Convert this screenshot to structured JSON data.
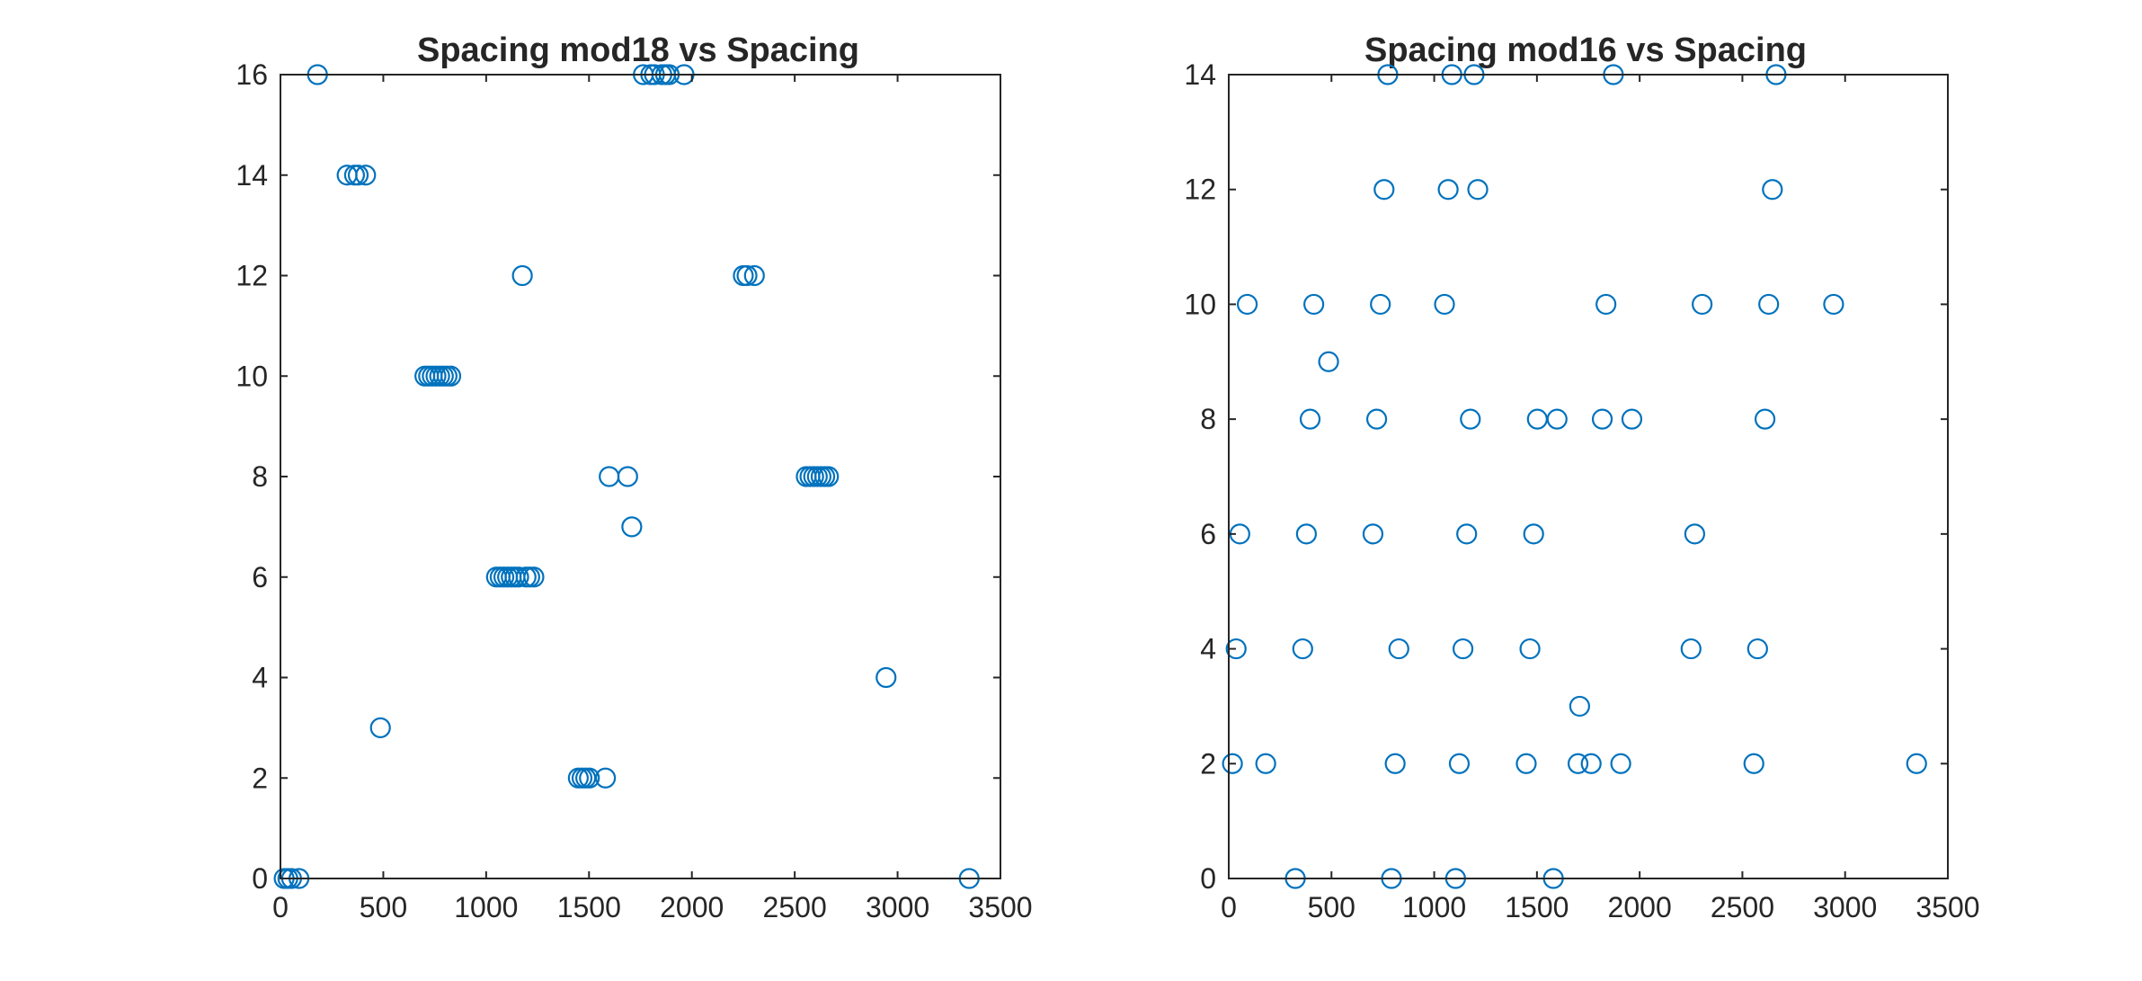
{
  "chart_data": [
    {
      "type": "scatter",
      "title": "Spacing mod18 vs Spacing",
      "xlabel": "",
      "ylabel": "",
      "xlim": [
        0,
        3500
      ],
      "ylim": [
        0,
        16
      ],
      "xticks": [
        "0",
        "500",
        "1000",
        "1500",
        "2000",
        "2500",
        "3000",
        "3500"
      ],
      "yticks": [
        "0",
        "2",
        "4",
        "6",
        "8",
        "10",
        "12",
        "14",
        "16"
      ],
      "grid": false,
      "marker": "circle",
      "color": "#0072BD",
      "series": [
        {
          "x": [
            18,
            36,
            54,
            90,
            180,
            324,
            360,
            378,
            414,
            486,
            702,
            720,
            738,
            756,
            774,
            792,
            810,
            828,
            1050,
            1068,
            1086,
            1104,
            1122,
            1140,
            1158,
            1176,
            1194,
            1212,
            1232,
            1448,
            1466,
            1484,
            1502,
            1580,
            1598,
            1688,
            1708,
            1764,
            1800,
            1818,
            1854,
            1872,
            1890,
            1962,
            2250,
            2268,
            2304,
            2556,
            2574,
            2592,
            2610,
            2628,
            2646,
            2664,
            2944,
            3348
          ],
          "y": [
            0,
            0,
            0,
            0,
            16,
            14,
            14,
            14,
            14,
            3,
            10,
            10,
            10,
            10,
            10,
            10,
            10,
            10,
            6,
            6,
            6,
            6,
            6,
            6,
            6,
            12,
            6,
            6,
            6,
            2,
            2,
            2,
            2,
            2,
            8,
            8,
            7,
            16,
            16,
            16,
            16,
            16,
            16,
            16,
            12,
            12,
            12,
            8,
            8,
            8,
            8,
            8,
            8,
            8,
            4,
            0
          ]
        }
      ]
    },
    {
      "type": "scatter",
      "title": "Spacing mod16 vs Spacing",
      "xlabel": "",
      "ylabel": "",
      "xlim": [
        0,
        3500
      ],
      "ylim": [
        0,
        14
      ],
      "xticks": [
        "0",
        "500",
        "1000",
        "1500",
        "2000",
        "2500",
        "3000",
        "3500"
      ],
      "yticks": [
        "0",
        "2",
        "4",
        "6",
        "8",
        "10",
        "12",
        "14"
      ],
      "grid": false,
      "marker": "circle",
      "color": "#0072BD",
      "series": [
        {
          "x": [
            18,
            36,
            54,
            90,
            180,
            324,
            360,
            378,
            396,
            414,
            486,
            702,
            720,
            738,
            756,
            774,
            792,
            810,
            828,
            1050,
            1068,
            1086,
            1104,
            1122,
            1140,
            1158,
            1176,
            1194,
            1212,
            1448,
            1466,
            1484,
            1502,
            1580,
            1598,
            1700,
            1708,
            1764,
            1818,
            1836,
            1872,
            1908,
            1962,
            2250,
            2268,
            2304,
            2556,
            2574,
            2610,
            2628,
            2646,
            2664,
            2944,
            3348
          ],
          "y": [
            2,
            4,
            6,
            10,
            2,
            0,
            4,
            6,
            8,
            10,
            9,
            6,
            8,
            10,
            12,
            14,
            0,
            2,
            4,
            10,
            12,
            14,
            0,
            2,
            4,
            6,
            8,
            14,
            12,
            2,
            4,
            6,
            8,
            0,
            8,
            2,
            3,
            2,
            8,
            10,
            14,
            2,
            8,
            4,
            6,
            10,
            2,
            4,
            8,
            10,
            12,
            14,
            10,
            2
          ]
        }
      ]
    }
  ]
}
